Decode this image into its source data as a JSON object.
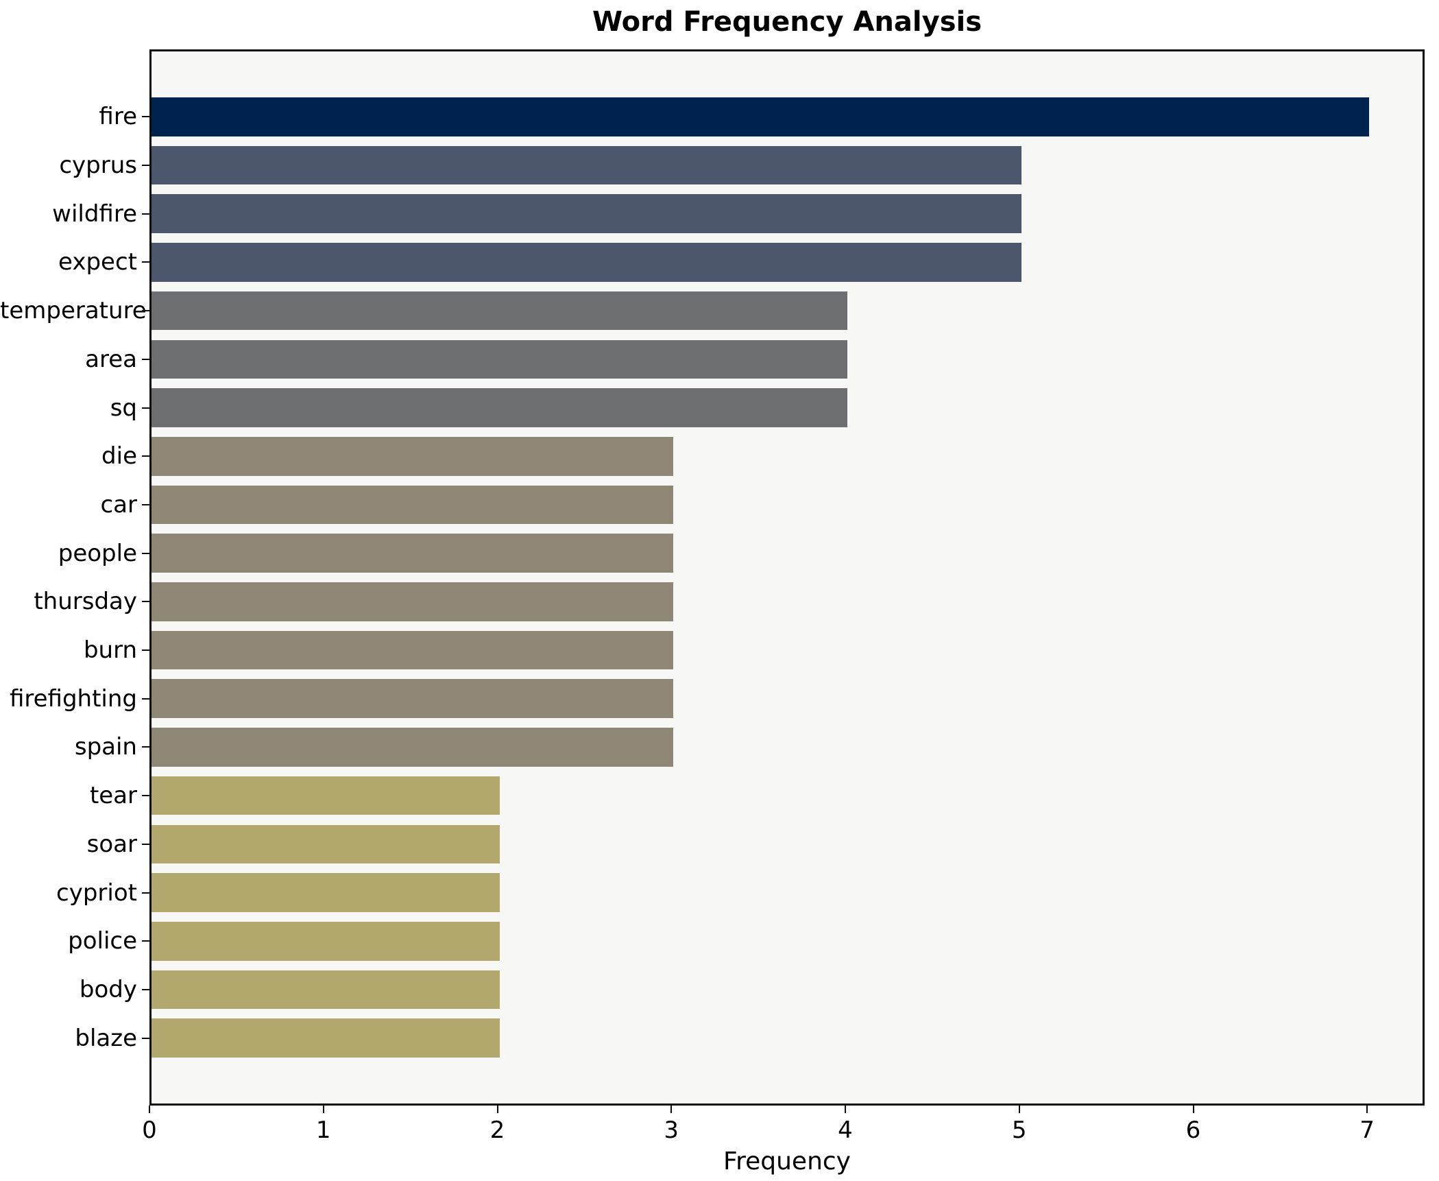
{
  "chart_data": {
    "type": "bar",
    "orientation": "horizontal",
    "title": "Word Frequency Analysis",
    "xlabel": "Frequency",
    "ylabel": "",
    "categories": [
      "fire",
      "cyprus",
      "wildfire",
      "expect",
      "temperature",
      "area",
      "sq",
      "die",
      "car",
      "people",
      "thursday",
      "burn",
      "firefighting",
      "spain",
      "tear",
      "soar",
      "cypriot",
      "police",
      "body",
      "blaze"
    ],
    "values": [
      7,
      5,
      5,
      5,
      4,
      4,
      4,
      3,
      3,
      3,
      3,
      3,
      3,
      3,
      2,
      2,
      2,
      2,
      2,
      2
    ],
    "bar_colors": [
      "#00224e",
      "#4c566d",
      "#4c566d",
      "#4c566d",
      "#6c6e71",
      "#6c6e71",
      "#6c6e71",
      "#8f8776",
      "#8f8776",
      "#8f8776",
      "#8f8776",
      "#8f8776",
      "#8f8776",
      "#8f8776",
      "#b2a76d",
      "#b2a76d",
      "#b2a76d",
      "#b2a76d",
      "#b2a76d",
      "#b2a76d"
    ],
    "xlim": [
      0,
      7.33
    ],
    "xticks": [
      0,
      1,
      2,
      3,
      4,
      5,
      6,
      7
    ],
    "grid": false,
    "legend": false,
    "plot_background": "#f7f7f6",
    "figure_background": "#ffffff",
    "spine_color": "#0d0d0d",
    "text_color": "#000000"
  }
}
